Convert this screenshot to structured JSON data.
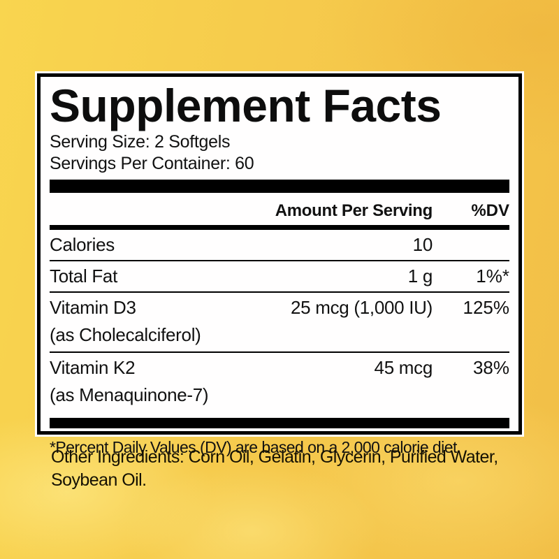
{
  "panel": {
    "title": "Supplement Facts",
    "serving_size": "Serving Size: 2 Softgels",
    "servings_per_container": "Servings Per Container: 60",
    "header": {
      "amount": "Amount Per Serving",
      "dv": "%DV"
    },
    "rows": [
      {
        "name": "Calories",
        "amount": "10",
        "dv": "",
        "sub": ""
      },
      {
        "name": "Total Fat",
        "amount": "1 g",
        "dv": "1%*",
        "sub": ""
      },
      {
        "name": "Vitamin D3",
        "amount": "25 mcg (1,000 IU)",
        "dv": "125%",
        "sub": "(as Cholecalciferol)"
      },
      {
        "name": "Vitamin K2",
        "amount": "45 mcg",
        "dv": "38%",
        "sub": "(as Menaquinone-7)"
      }
    ],
    "footnote": "*Percent Daily Values (DV) are based on a 2,000 calorie diet."
  },
  "other_ingredients": "Other Ingredients: Corn Oil, Gelatin, Glycerin, Purified Water, Soybean Oil.",
  "colors": {
    "background_gold": "#f5c84b",
    "background_amber": "#f2bf47",
    "cloud_highlight": "#fce37a",
    "panel_background": "#ffffff",
    "panel_border": "#000000",
    "text": "#111111"
  }
}
